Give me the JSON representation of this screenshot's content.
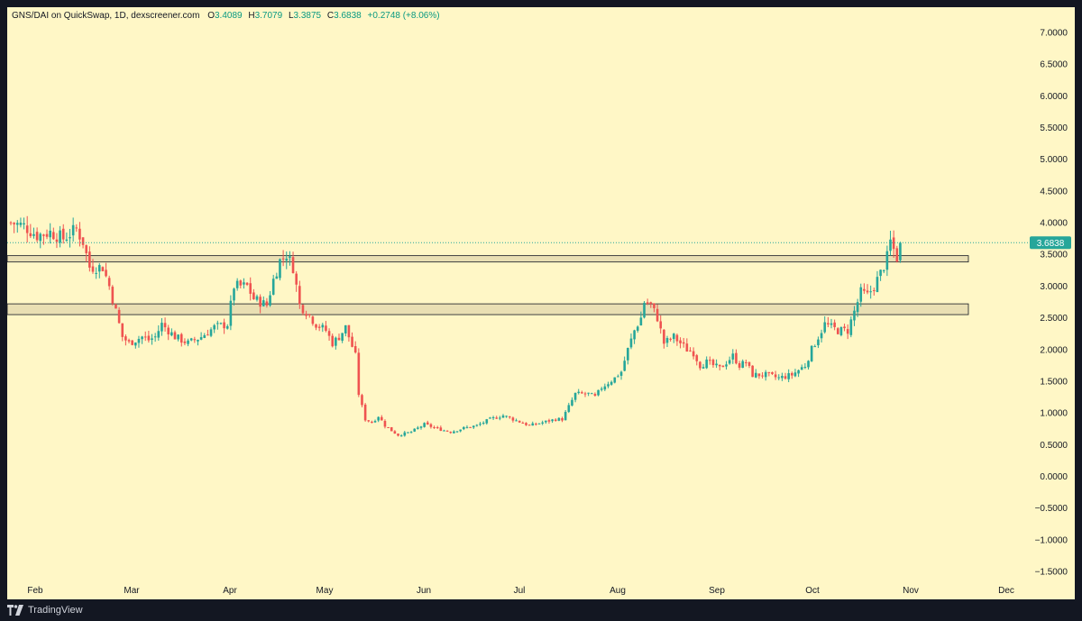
{
  "header": {
    "symbol": "GNS/DAI on QuickSwap, 1D, dexscreener.com",
    "open_label": "O",
    "open": "3.4089",
    "high_label": "H",
    "high": "3.7079",
    "low_label": "L",
    "low": "3.3875",
    "close_label": "C",
    "close": "3.6838",
    "change": "+0.2748 (+8.06%)"
  },
  "brand": {
    "name": "TradingView",
    "icon": "tradingview-logo-icon"
  },
  "colors": {
    "background": "#fff7c6",
    "up": "#26a69a",
    "down": "#ef5350",
    "zone": "#e9dfb3",
    "last_price": "#26a69a"
  },
  "chart_data": {
    "type": "candlestick",
    "title": "",
    "xlabel": "",
    "ylabel": "",
    "ylim": [
      -1.6,
      7.3
    ],
    "grid": false,
    "y_ticks": [
      "7.0000",
      "6.5000",
      "6.0000",
      "5.5000",
      "5.0000",
      "4.5000",
      "4.0000",
      "3.5000",
      "3.0000",
      "2.5000",
      "2.0000",
      "1.5000",
      "1.0000",
      "0.5000",
      "0.0000",
      "−0.5000",
      "−1.0000",
      "−1.5000"
    ],
    "x_ticks": [
      "Feb",
      "Mar",
      "Apr",
      "May",
      "Jun",
      "Jul",
      "Aug",
      "Sep",
      "Oct",
      "Nov",
      "Dec"
    ],
    "last_price_label": "3.6838",
    "last_price": 3.6838,
    "zones": [
      {
        "low": 3.38,
        "high": 3.48
      },
      {
        "low": 2.55,
        "high": 2.72
      }
    ],
    "close_path": [
      [
        0,
        4.0
      ],
      [
        4,
        3.95
      ],
      [
        8,
        3.8
      ],
      [
        12,
        3.85
      ],
      [
        16,
        3.75
      ],
      [
        20,
        3.9
      ],
      [
        22,
        3.7
      ],
      [
        24,
        3.3
      ],
      [
        28,
        3.3
      ],
      [
        30,
        3.0
      ],
      [
        32,
        2.6
      ],
      [
        34,
        2.2
      ],
      [
        36,
        2.1
      ],
      [
        40,
        2.2
      ],
      [
        42,
        2.15
      ],
      [
        44,
        2.2
      ],
      [
        46,
        2.4
      ],
      [
        50,
        2.2
      ],
      [
        54,
        2.1
      ],
      [
        58,
        2.2
      ],
      [
        62,
        2.35
      ],
      [
        66,
        2.4
      ],
      [
        68,
        3.0
      ],
      [
        72,
        3.0
      ],
      [
        74,
        2.8
      ],
      [
        78,
        2.7
      ],
      [
        80,
        3.1
      ],
      [
        82,
        3.4
      ],
      [
        84,
        3.5
      ],
      [
        86,
        3.3
      ],
      [
        88,
        2.7
      ],
      [
        90,
        2.6
      ],
      [
        93,
        2.4
      ],
      [
        96,
        2.3
      ],
      [
        98,
        2.1
      ],
      [
        100,
        2.2
      ],
      [
        102,
        2.35
      ],
      [
        105,
        1.9
      ],
      [
        106,
        1.3
      ],
      [
        108,
        0.9
      ],
      [
        110,
        0.85
      ],
      [
        112,
        0.95
      ],
      [
        114,
        0.8
      ],
      [
        116,
        0.72
      ],
      [
        118,
        0.65
      ],
      [
        122,
        0.7
      ],
      [
        126,
        0.82
      ],
      [
        130,
        0.75
      ],
      [
        134,
        0.7
      ],
      [
        138,
        0.76
      ],
      [
        142,
        0.8
      ],
      [
        146,
        0.9
      ],
      [
        150,
        0.96
      ],
      [
        154,
        0.88
      ],
      [
        158,
        0.8
      ],
      [
        162,
        0.85
      ],
      [
        166,
        0.9
      ],
      [
        168,
        0.9
      ],
      [
        170,
        1.1
      ],
      [
        172,
        1.3
      ],
      [
        176,
        1.3
      ],
      [
        178,
        1.25
      ],
      [
        180,
        1.4
      ],
      [
        184,
        1.55
      ],
      [
        186,
        1.65
      ],
      [
        188,
        2.0
      ],
      [
        190,
        2.3
      ],
      [
        192,
        2.5
      ],
      [
        193,
        2.75
      ],
      [
        195,
        2.7
      ],
      [
        197,
        2.5
      ],
      [
        199,
        2.1
      ],
      [
        202,
        2.2
      ],
      [
        204,
        2.1
      ],
      [
        206,
        2.0
      ],
      [
        208,
        1.95
      ],
      [
        210,
        1.75
      ],
      [
        212,
        1.8
      ],
      [
        216,
        1.7
      ],
      [
        218,
        1.8
      ],
      [
        220,
        1.9
      ],
      [
        222,
        1.75
      ],
      [
        224,
        1.8
      ],
      [
        226,
        1.6
      ],
      [
        230,
        1.6
      ],
      [
        234,
        1.55
      ],
      [
        238,
        1.6
      ],
      [
        242,
        1.75
      ],
      [
        244,
        2.0
      ],
      [
        246,
        2.2
      ],
      [
        248,
        2.4
      ],
      [
        250,
        2.35
      ],
      [
        252,
        2.3
      ],
      [
        255,
        2.3
      ],
      [
        257,
        2.6
      ],
      [
        259,
        2.9
      ],
      [
        261,
        2.85
      ],
      [
        263,
        3.0
      ],
      [
        265,
        3.2
      ],
      [
        267,
        3.45
      ],
      [
        268,
        3.7
      ],
      [
        270,
        3.45
      ],
      [
        271,
        3.68
      ]
    ],
    "x_range_days": [
      0,
      291
    ]
  }
}
